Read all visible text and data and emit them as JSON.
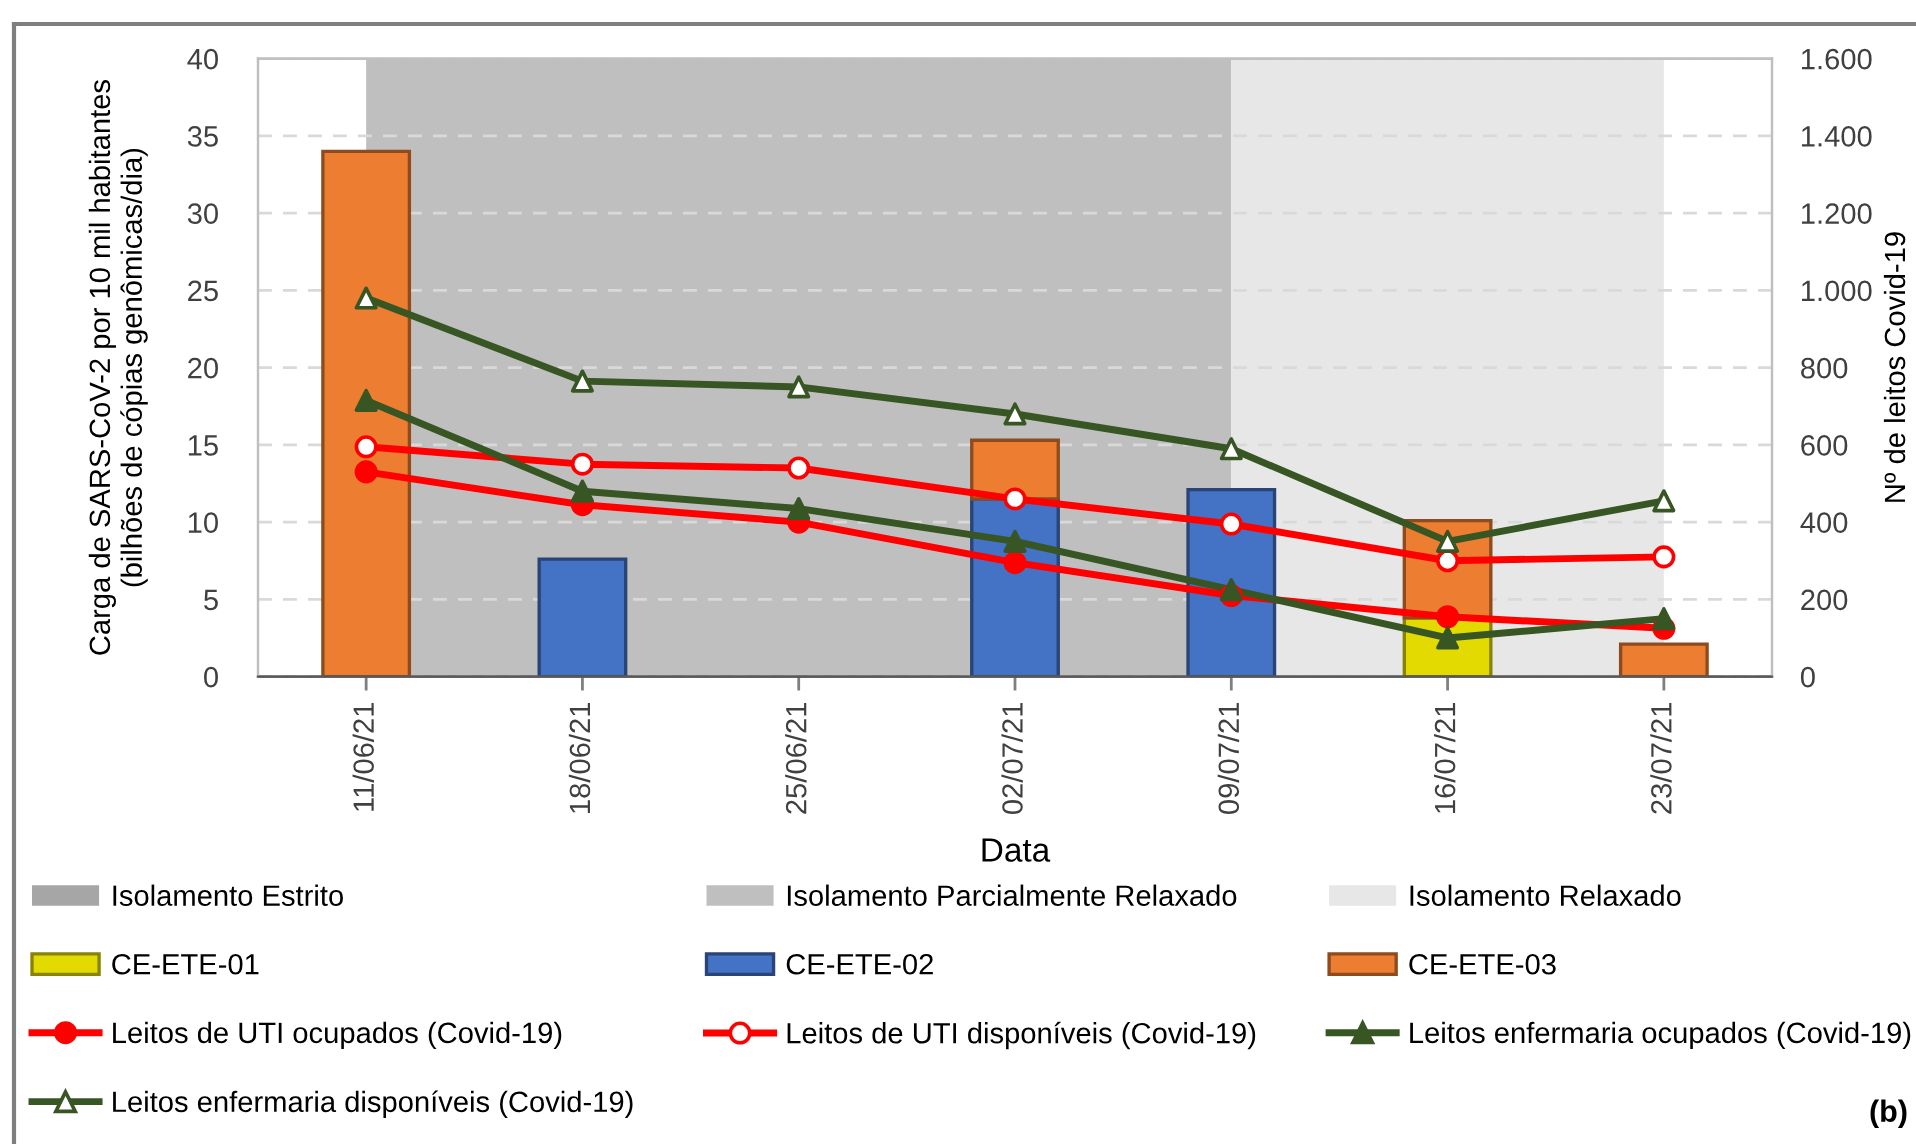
{
  "chart_data": {
    "type": "bar",
    "stacked": true,
    "categories": [
      "11/06/21",
      "18/06/21",
      "25/06/21",
      "02/07/21",
      "09/07/21",
      "16/07/21",
      "23/07/21"
    ],
    "xlabel": "Data",
    "ylabel": "Carga de SARS-CoV-2 por 10 mil habitantes\n(bilhões de cópias genômicas/dia)",
    "y2label": "Nº de leitos Covid-19",
    "ylim": [
      0,
      40
    ],
    "yticks": [
      0,
      5,
      10,
      15,
      20,
      25,
      30,
      35,
      40
    ],
    "y2lim": [
      0,
      1600
    ],
    "y2ticks": [
      0,
      200,
      400,
      600,
      800,
      {
        "value": 1000,
        "label": "1.000"
      },
      {
        "value": 1200,
        "label": "1.200"
      },
      {
        "value": 1400,
        "label": "1.400"
      },
      {
        "value": 1600,
        "label": "1.600"
      }
    ],
    "grid": "y",
    "legend": "bottom",
    "bands": [
      {
        "axis": "x",
        "from": "11/06/21",
        "to": "09/07/21",
        "label": "Isolamento Parcialmente Relaxado",
        "color": "#bfbfbf"
      },
      {
        "axis": "x",
        "from": "09/07/21",
        "to": "23/07/21",
        "label": "Isolamento Relaxado",
        "color": "#e7e7e7"
      }
    ],
    "series": [
      {
        "name": "Isolamento Estrito",
        "type": "area",
        "color": "#a6a6a6",
        "values": [
          null,
          null,
          null,
          null,
          null,
          null,
          null
        ]
      },
      {
        "name": "CE-ETE-01",
        "color": "#e2da00",
        "values": [
          null,
          null,
          null,
          null,
          null,
          3.8,
          null
        ]
      },
      {
        "name": "CE-ETE-02",
        "color": "#4472c4",
        "values": [
          null,
          7.6,
          null,
          11.5,
          12.1,
          null,
          null
        ]
      },
      {
        "name": "CE-ETE-03",
        "color": "#ed7d31",
        "values": [
          34,
          null,
          null,
          3.8,
          null,
          6.3,
          2.1
        ]
      },
      {
        "name": "Leitos de UTI ocupados (Covid-19)",
        "type": "line",
        "axis": "y2",
        "color": "#ff0000",
        "marker": "circle",
        "line_style": "solid",
        "values": [
          530,
          445,
          400,
          295,
          210,
          155,
          125
        ]
      },
      {
        "name": "Leitos de UTI disponíveis (Covid-19)",
        "type": "line",
        "axis": "y2",
        "color": "#ff0000",
        "colors": [
          "#ffffff",
          "#ffffff",
          "#ffffff",
          "#ffffff",
          "#ffffff",
          "#ffffff",
          "#ffffff"
        ],
        "marker": "circle",
        "line_style": "solid",
        "values": [
          595,
          550,
          540,
          460,
          395,
          300,
          310
        ]
      },
      {
        "name": "Leitos enfermaria ocupados (Covid-19)",
        "type": "line",
        "axis": "y2",
        "color": "#375623",
        "marker": "triangle",
        "line_style": "solid",
        "values": [
          715,
          480,
          435,
          350,
          225,
          100,
          150
        ]
      },
      {
        "name": "Leitos enfermaria disponíveis (Covid-19)",
        "type": "line",
        "axis": "y2",
        "color": "#375623",
        "colors": [
          "#ffffff",
          "#ffffff",
          "#ffffff",
          "#ffffff",
          "#ffffff",
          "#ffffff",
          "#ffffff"
        ],
        "marker": "triangle",
        "line_style": "solid",
        "values": [
          980,
          765,
          750,
          680,
          590,
          350,
          455
        ]
      }
    ],
    "annotations": [
      "(b)"
    ]
  }
}
